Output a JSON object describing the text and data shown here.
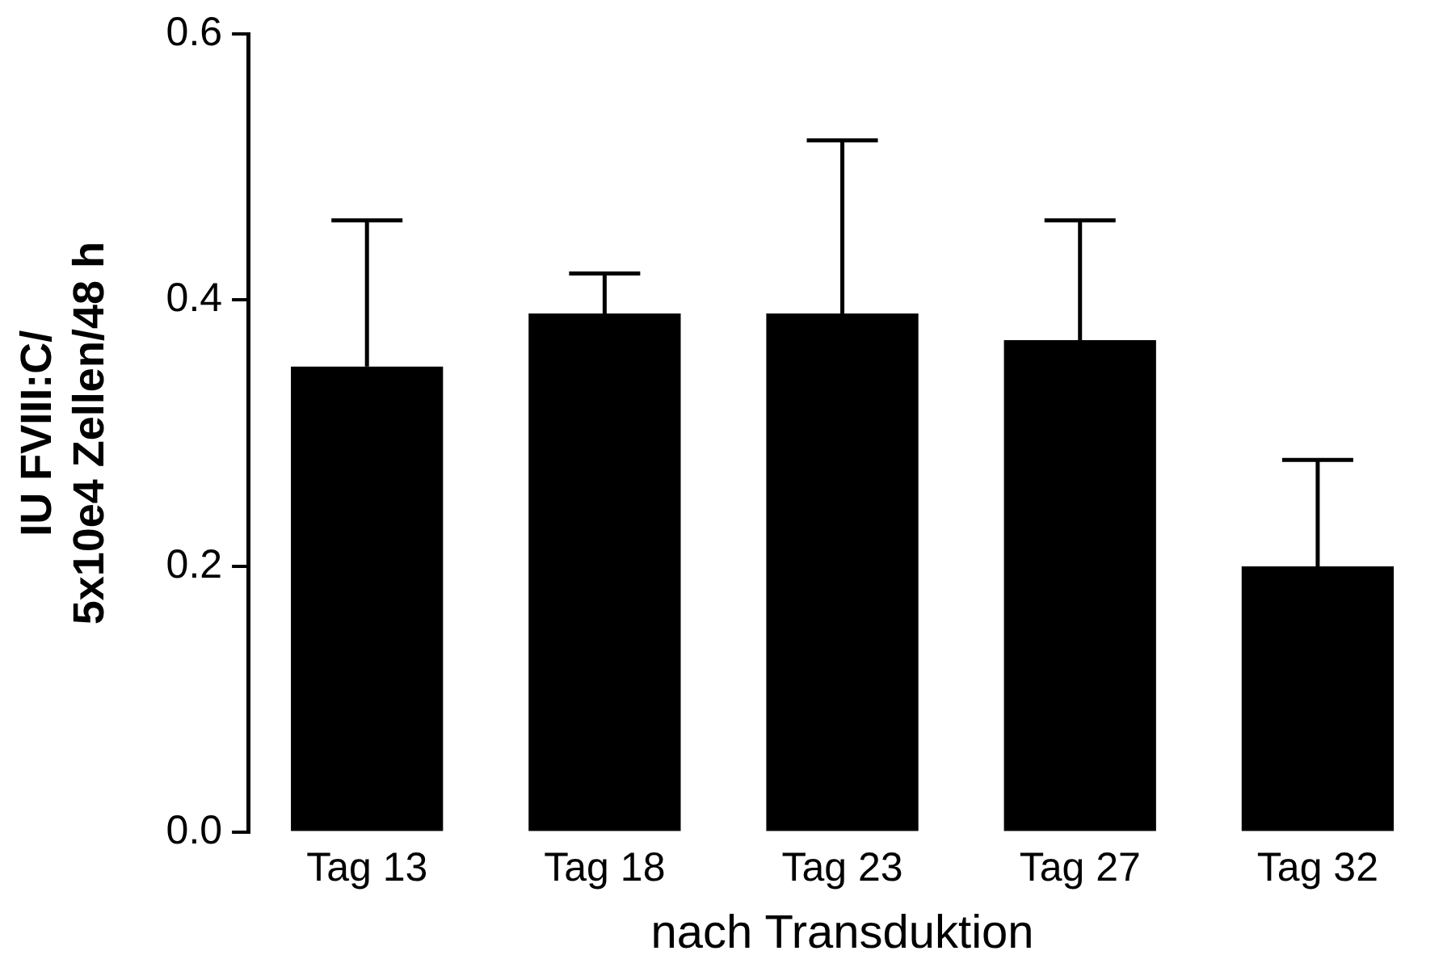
{
  "chart_data": {
    "type": "bar",
    "xlabel": "nach Transduktion",
    "ylabel": "IU FVIII:C/\n5x10e4 Zellen/48 h",
    "categories": [
      "Tag 13",
      "Tag 18",
      "Tag 23",
      "Tag 27",
      "Tag 32"
    ],
    "values": [
      0.35,
      0.39,
      0.39,
      0.37,
      0.2
    ],
    "errors": [
      [
        0.35,
        0.46
      ],
      [
        0.39,
        0.42
      ],
      [
        0.39,
        0.52
      ],
      [
        0.37,
        0.46
      ],
      [
        0.2,
        0.28
      ]
    ],
    "color": "#000000",
    "ylim": [
      0,
      0.6
    ],
    "yticks": [
      {
        "value": 0,
        "label": "0.0"
      },
      {
        "value": 0.2,
        "label": "0.2"
      },
      {
        "value": 0.4,
        "label": "0.4"
      },
      {
        "value": 0.6,
        "label": "0.6"
      }
    ],
    "grid": false,
    "legend": false
  }
}
